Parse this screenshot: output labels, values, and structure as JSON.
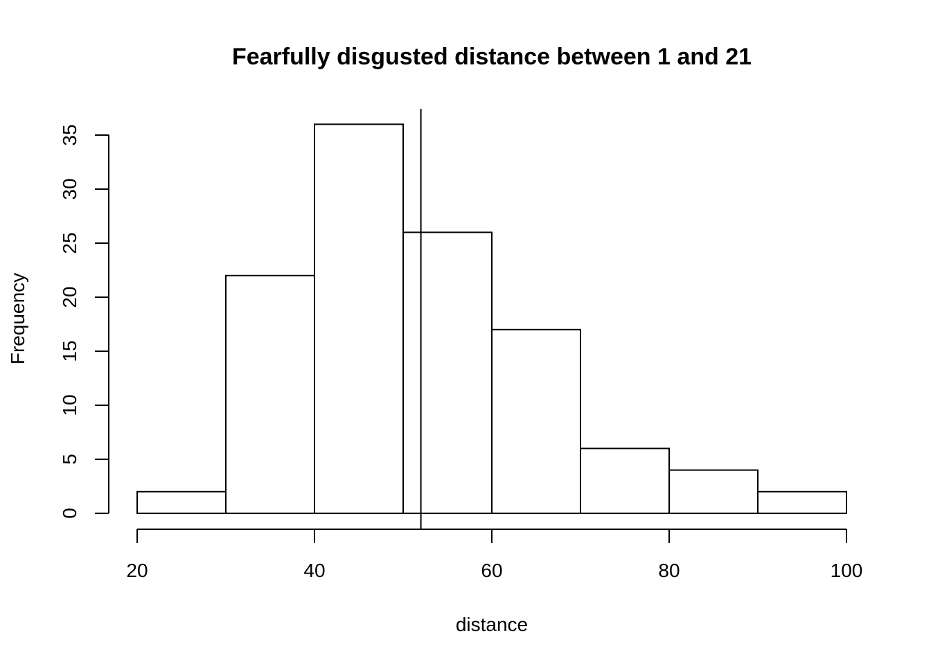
{
  "chart_data": {
    "type": "bar",
    "title": "Fearfully disgusted distance between 1 and 21",
    "xlabel": "distance",
    "ylabel": "Frequency",
    "bins": [
      {
        "from": 20,
        "to": 30,
        "count": 2
      },
      {
        "from": 30,
        "to": 40,
        "count": 22
      },
      {
        "from": 40,
        "to": 50,
        "count": 36
      },
      {
        "from": 50,
        "to": 60,
        "count": 26
      },
      {
        "from": 60,
        "to": 70,
        "count": 17
      },
      {
        "from": 70,
        "to": 80,
        "count": 6
      },
      {
        "from": 80,
        "to": 90,
        "count": 4
      },
      {
        "from": 90,
        "to": 100,
        "count": 2
      }
    ],
    "xticks": [
      20,
      40,
      60,
      80,
      100
    ],
    "yticks": [
      0,
      5,
      10,
      15,
      20,
      25,
      30,
      35
    ],
    "xlim": [
      20,
      100
    ],
    "ylim": [
      0,
      35
    ],
    "vline_x": 52,
    "grid": false,
    "colors": {
      "bar_fill": "#ffffff",
      "bar_stroke": "#000000"
    }
  }
}
